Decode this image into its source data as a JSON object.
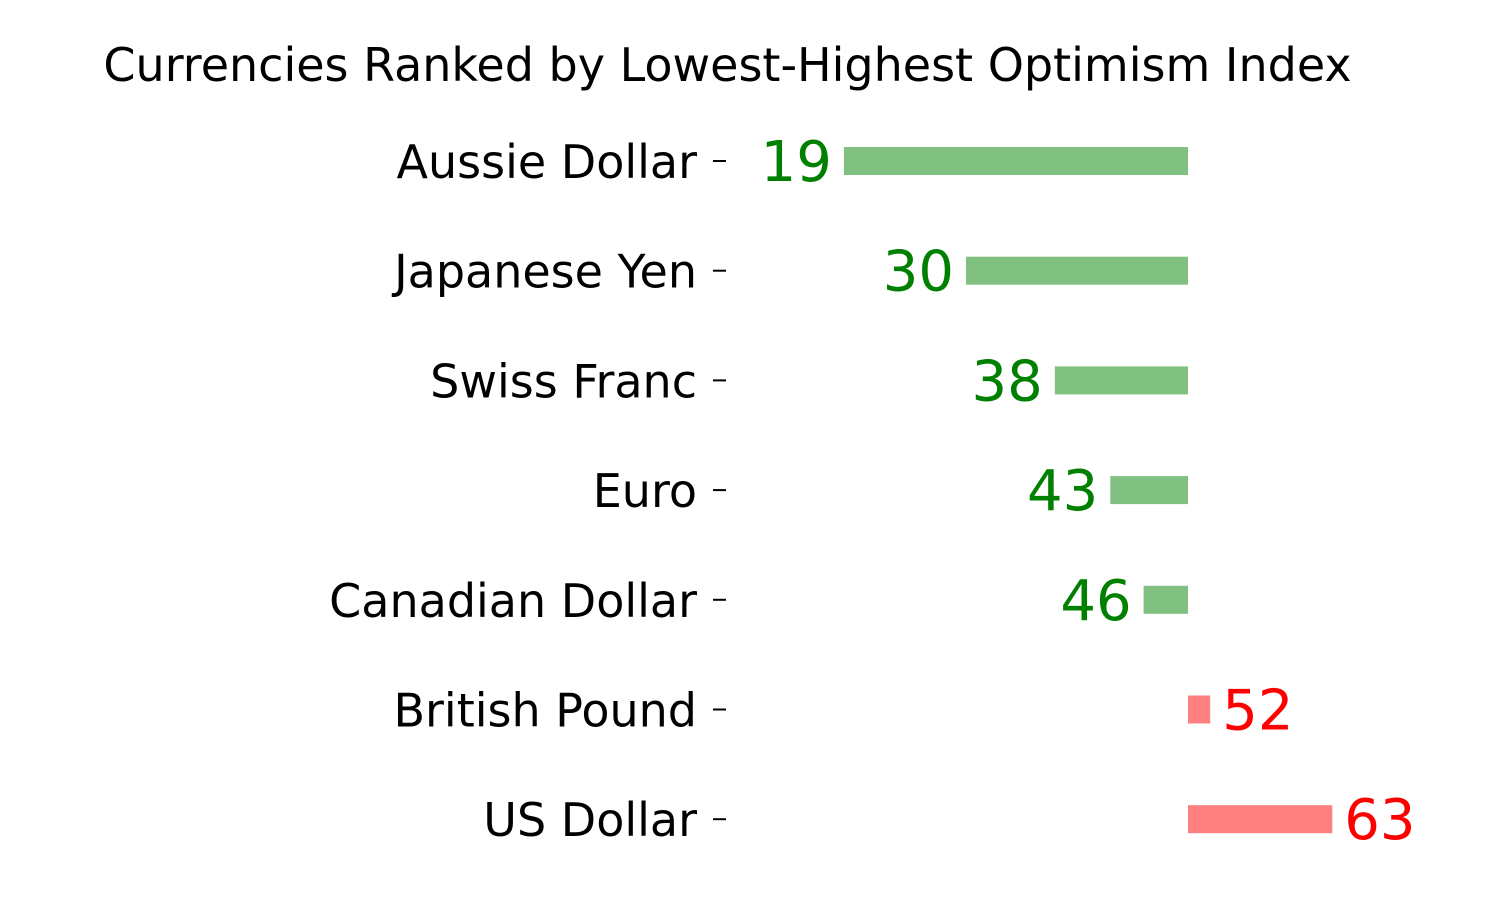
{
  "chart_data": {
    "type": "bar",
    "orientation": "horizontal-diverging",
    "title": "Currencies Ranked by Lowest-Highest Optimism Index",
    "baseline": 50,
    "categories": [
      "Aussie Dollar",
      "Japanese Yen",
      "Swiss Franc",
      "Euro",
      "Canadian Dollar",
      "British Pound",
      "US Dollar"
    ],
    "values": [
      19,
      30,
      38,
      43,
      46,
      52,
      63
    ],
    "colors": {
      "below_bar": "#80c080",
      "below_text": "#008000",
      "above_bar": "#ff8080",
      "above_text": "#ff0000"
    },
    "xlim": [
      10,
      70
    ],
    "grid": false,
    "legend": "none"
  }
}
